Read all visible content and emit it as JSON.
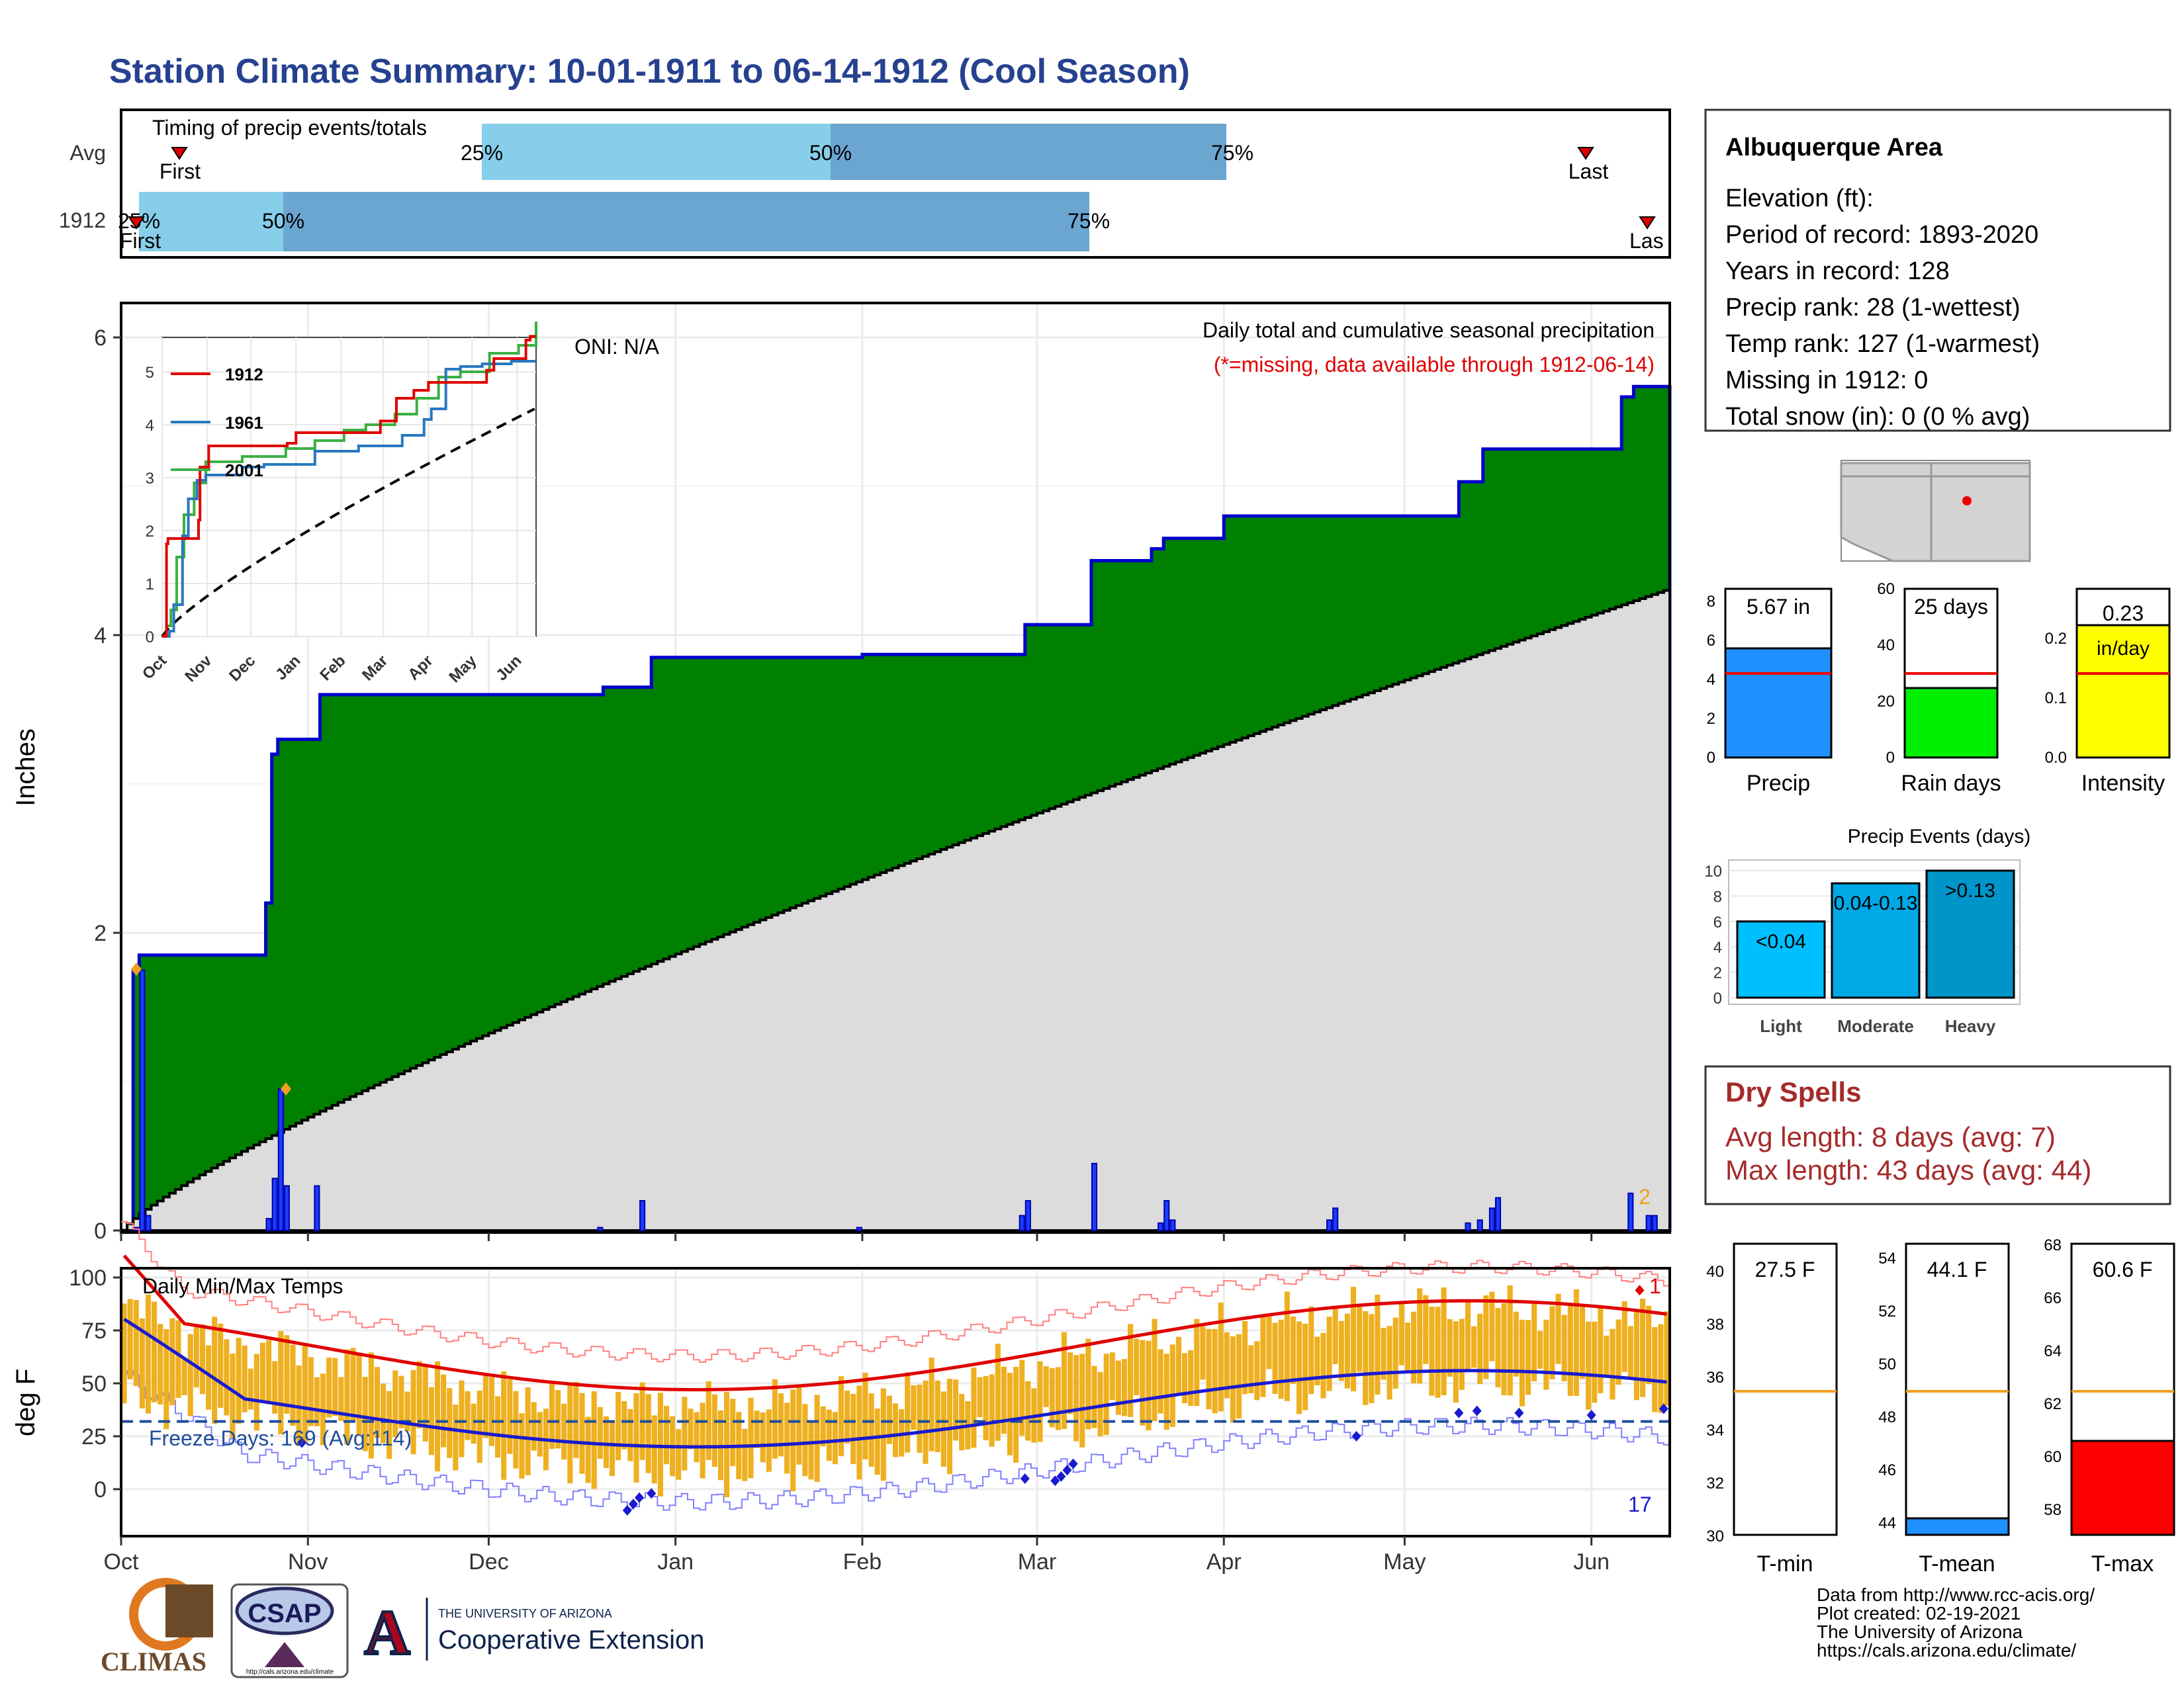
{
  "title": "Station Climate Summary: 10-01-1911 to 06-14-1912 (Cool Season)",
  "timing": {
    "label": "Timing of precip events/totals",
    "rows": [
      "Avg",
      "1912"
    ],
    "avg_marks": {
      "first": "First",
      "last": "Last",
      "p25": "25%",
      "p50": "50%",
      "p75": "75%"
    },
    "y1912_marks": {
      "first": "First",
      "last": "Las",
      "p25": "25%",
      "p50": "50%",
      "p75": "75%"
    }
  },
  "info": {
    "name": "Albuquerque Area",
    "lines": [
      "Elevation (ft):",
      "Period of record: 1893-2020",
      "Years in record: 128",
      "Precip rank: 28 (1-wettest)",
      "Temp rank: 127 (1-warmest)",
      "Missing in 1912: 0",
      "Total snow (in): 0 (0 % avg)"
    ]
  },
  "precip_panel": {
    "ylabel": "Inches",
    "caption": "Daily total and cumulative seasonal precipitation",
    "missing_note": "(*=missing, data available through 1912-06-14)",
    "oni": "ONI: N/A",
    "corner": "2",
    "y_ticks": [
      "0",
      "2",
      "4",
      "6"
    ],
    "x_ticks": [
      "Oct",
      "Nov",
      "Dec",
      "Jan",
      "Feb",
      "Mar",
      "Apr",
      "May",
      "Jun"
    ]
  },
  "inset": {
    "y_ticks": [
      "0",
      "1",
      "2",
      "3",
      "4",
      "5"
    ],
    "x_ticks": [
      "Oct",
      "Nov",
      "Dec",
      "Jan",
      "Feb",
      "Mar",
      "Apr",
      "May",
      "Jun"
    ],
    "legend": [
      "1912",
      "1961",
      "2001"
    ]
  },
  "temp_panel": {
    "ylabel": "deg F",
    "title": "Daily Min/Max Temps",
    "freeze": "Freeze Days: 169 (Avg:114)",
    "count_high": "1",
    "count_low": "17",
    "y_ticks": [
      "0",
      "25",
      "50",
      "75",
      "100"
    ],
    "x_ticks": [
      "Oct",
      "Nov",
      "Dec",
      "Jan",
      "Feb",
      "Mar",
      "Apr",
      "May",
      "Jun"
    ]
  },
  "mini": {
    "precip": {
      "value": "5.67 in",
      "label": "Precip",
      "ticks": [
        "0",
        "2",
        "4",
        "6",
        "8"
      ]
    },
    "raindays": {
      "value": "25 days",
      "label": "Rain days",
      "ticks": [
        "0",
        "20",
        "40",
        "60"
      ]
    },
    "intensity": {
      "value": "0.23",
      "unit": "in/day",
      "label": "Intensity",
      "ticks": [
        "0.0",
        "0.1",
        "0.2"
      ]
    }
  },
  "events": {
    "title": "Precip Events (days)",
    "ticks": [
      "0",
      "2",
      "4",
      "6",
      "8",
      "10"
    ],
    "bars": [
      {
        "label": "Light",
        "text": "<0.04",
        "value": 6
      },
      {
        "label": "Moderate",
        "text": "0.04-0.13",
        "value": 9
      },
      {
        "label": "Heavy",
        "text": ">0.13",
        "value": 10
      }
    ]
  },
  "dry": {
    "title": "Dry Spells",
    "avg": "Avg length: 8 days (avg: 7)",
    "max": "Max length: 43 days (avg: 44)"
  },
  "temps_mini": {
    "tmin": {
      "value": "27.5 F",
      "label": "T-min",
      "ticks": [
        "30",
        "32",
        "34",
        "36",
        "38",
        "40"
      ]
    },
    "tmean": {
      "value": "44.1 F",
      "label": "T-mean",
      "ticks": [
        "44",
        "46",
        "48",
        "50",
        "52",
        "54"
      ]
    },
    "tmax": {
      "value": "60.6 F",
      "label": "T-max",
      "ticks": [
        "58",
        "60",
        "62",
        "64",
        "66",
        "68"
      ]
    }
  },
  "footer": {
    "lines": [
      "Data from http://www.rcc-acis.org/",
      "Plot created: 02-19-2021",
      "The University of Arizona",
      "https://cals.arizona.edu/climate/"
    ],
    "climas": "CLIMAS",
    "csap": "CSAP",
    "csap_url": "http://cals.arizona.edu/climate",
    "ua_top": "THE UNIVERSITY OF ARIZONA",
    "ua_bottom": "Cooperative Extension"
  },
  "colors": {
    "title": "#26418f",
    "green": "#008000",
    "blue": "#0000cc",
    "red": "#e00000",
    "orange": "#f0b020",
    "dry": "#a52a2a"
  },
  "chart_data": {
    "type": "area",
    "series": [
      {
        "name": "1912",
        "x": [
          "Oct 3",
          "Oct 4",
          "Oct 25",
          "Oct 26",
          "Oct 27",
          "Nov 3",
          "Dec 20",
          "Dec 28",
          "Feb 1",
          "Feb 28",
          "Mar 1",
          "Mar 10",
          "Mar 20",
          "Mar 22",
          "Apr 1",
          "Apr 15",
          "May 10",
          "May 14",
          "Jun 1",
          "Jun 6",
          "Jun 8",
          "Jun 11"
        ],
        "values": [
          1.75,
          1.85,
          2.2,
          3.2,
          3.3,
          3.6,
          3.65,
          3.85,
          3.87,
          4.07,
          4.07,
          4.5,
          4.58,
          4.65,
          4.8,
          4.8,
          5.03,
          5.25,
          5.25,
          5.6,
          5.67,
          5.67
        ]
      }
    ]
  }
}
